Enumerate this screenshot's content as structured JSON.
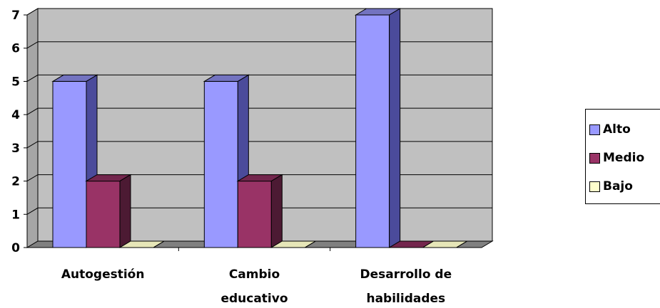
{
  "chart_data": {
    "type": "bar",
    "categories": [
      "Autogestión",
      "Cambio educativo",
      "Desarrollo de habilidades"
    ],
    "category_lines": [
      [
        "Autogestión"
      ],
      [
        "Cambio",
        "educativo"
      ],
      [
        "Desarrollo de",
        "habilidades"
      ]
    ],
    "series": [
      {
        "name": "Alto",
        "values": [
          5,
          5,
          7
        ],
        "color": "#9999ff",
        "side": "#4b4b9b",
        "top": "#7373c0"
      },
      {
        "name": "Medio",
        "values": [
          2,
          2,
          0
        ],
        "color": "#993366",
        "side": "#4c1a33",
        "top": "#73264d"
      },
      {
        "name": "Bajo",
        "values": [
          0,
          0,
          0
        ],
        "color": "#ffffcc",
        "side": "#bfbf99",
        "top": "#e6e6b8"
      }
    ],
    "ylim": [
      0,
      7
    ],
    "yticks": [
      "0",
      "1",
      "2",
      "3",
      "4",
      "5",
      "6",
      "7"
    ],
    "grid": true,
    "legend_position": "right",
    "wall_color": "#c0c0c0",
    "floor_color": "#808080"
  }
}
